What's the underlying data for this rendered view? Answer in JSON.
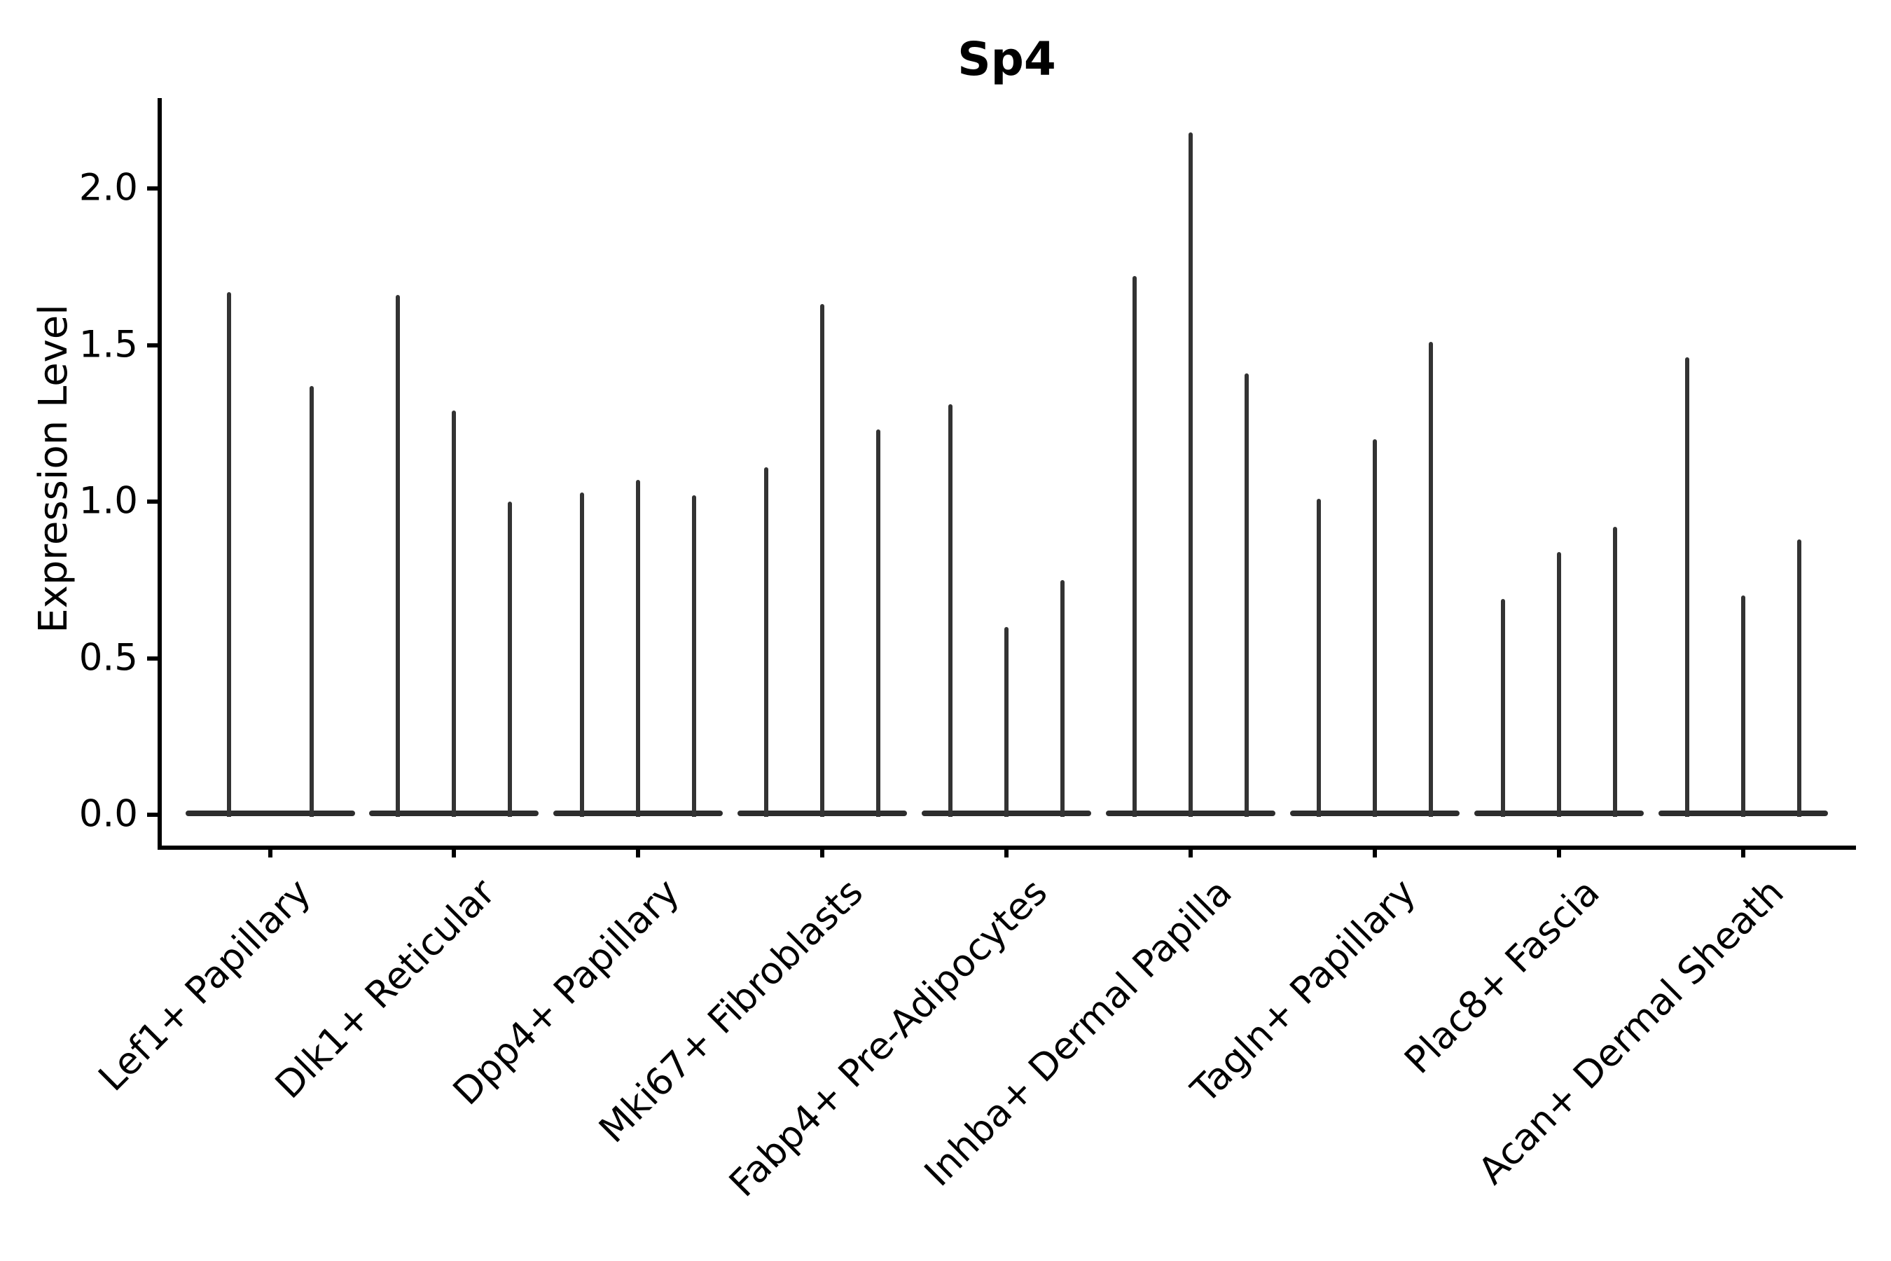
{
  "title": "Sp4",
  "ylabel": "Expression Level",
  "colors": {
    "background": "#ffffff",
    "violin": "#333333",
    "violin_base": "#2d2d2d",
    "axis": "#000000",
    "text": "#000000"
  },
  "chart_data": {
    "type": "violin",
    "title": "Sp4",
    "xlabel": "",
    "ylabel": "Expression Level",
    "ylim": [
      -0.11,
      2.29
    ],
    "yticks": [
      0.0,
      0.5,
      1.0,
      1.5,
      2.0
    ],
    "grid": false,
    "legend": "none",
    "categories": [
      "Lef1+ Papillary",
      "Dlk1+ Reticular",
      "Dpp4+ Papillary",
      "Mki67+ Fibroblasts",
      "Fabp4+ Pre-Adipocytes",
      "Inhba+ Dermal Papilla",
      "Tagln+ Papillary",
      "Plac8+ Fascia",
      "Acan+ Dermal Sheath"
    ],
    "groups": [
      {
        "category": "Lef1+ Papillary",
        "violin_maxima": [
          1.67,
          1.37
        ]
      },
      {
        "category": "Dlk1+ Reticular",
        "violin_maxima": [
          1.66,
          1.29,
          1.0
        ]
      },
      {
        "category": "Dpp4+ Papillary",
        "violin_maxima": [
          1.03,
          1.07,
          1.02
        ]
      },
      {
        "category": "Mki67+ Fibroblasts",
        "violin_maxima": [
          1.11,
          1.63,
          1.23
        ]
      },
      {
        "category": "Fabp4+ Pre-Adipocytes",
        "violin_maxima": [
          1.31,
          0.6,
          0.75
        ]
      },
      {
        "category": "Inhba+ Dermal Papilla",
        "violin_maxima": [
          1.72,
          2.18,
          1.41
        ]
      },
      {
        "category": "Tagln+ Papillary",
        "violin_maxima": [
          1.01,
          1.2,
          1.51
        ]
      },
      {
        "category": "Plac8+ Fascia",
        "violin_maxima": [
          0.69,
          0.84,
          0.92
        ]
      },
      {
        "category": "Acan+ Dermal Sheath",
        "violin_maxima": [
          1.46,
          0.7,
          0.88
        ]
      }
    ]
  }
}
